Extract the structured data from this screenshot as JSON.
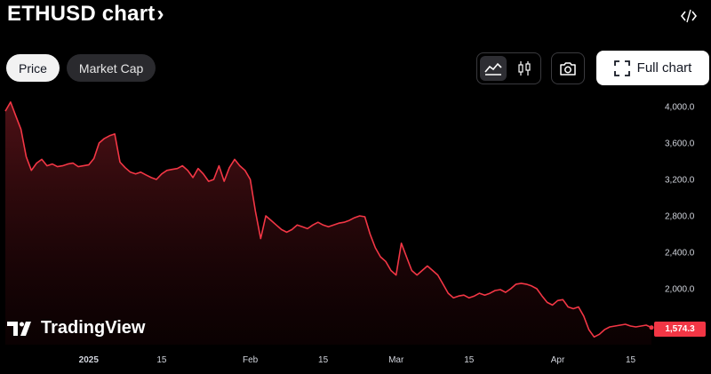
{
  "header": {
    "title": "ETHUSD chart",
    "title_chevron": "›",
    "embed_icon": "code-embed-icon"
  },
  "tabs": [
    {
      "label": "Price",
      "active": true
    },
    {
      "label": "Market Cap",
      "active": false
    }
  ],
  "toolbar": {
    "area_chart_icon": "area-chart-icon",
    "candles_icon": "candlestick-icon",
    "camera_icon": "camera-icon",
    "full_chart_label": "Full chart",
    "full_chart_icon": "fullscreen-icon"
  },
  "branding": {
    "logo_text": "TradingView"
  },
  "colors": {
    "line": "#f23645",
    "badge": "#f23645",
    "background": "#000000"
  },
  "chart_data": {
    "type": "area",
    "symbol": "ETHUSD",
    "y_ticks": [
      "4,000.0",
      "3,600.0",
      "3,200.0",
      "2,800.0",
      "2,400.0",
      "2,000.0"
    ],
    "y_tick_values": [
      4000,
      3600,
      3200,
      2800,
      2400,
      2000
    ],
    "x_ticks": [
      {
        "label": "2025",
        "date": "2025-01-01",
        "bold": true
      },
      {
        "label": "15",
        "date": "2025-01-15",
        "bold": false
      },
      {
        "label": "Feb",
        "date": "2025-02-01",
        "bold": false
      },
      {
        "label": "15",
        "date": "2025-02-15",
        "bold": false
      },
      {
        "label": "Mar",
        "date": "2025-03-01",
        "bold": false
      },
      {
        "label": "15",
        "date": "2025-03-15",
        "bold": false
      },
      {
        "label": "Apr",
        "date": "2025-04-01",
        "bold": false
      },
      {
        "label": "15",
        "date": "2025-04-15",
        "bold": false
      }
    ],
    "last_price": "1,574.3",
    "series": [
      {
        "x": [
          "2024-12-16",
          "2024-12-17",
          "2024-12-18",
          "2024-12-19",
          "2024-12-20",
          "2024-12-21",
          "2024-12-22",
          "2024-12-23",
          "2024-12-24",
          "2024-12-25",
          "2024-12-26",
          "2024-12-27",
          "2024-12-28",
          "2024-12-29",
          "2024-12-30",
          "2024-12-31",
          "2025-01-01",
          "2025-01-02",
          "2025-01-03",
          "2025-01-04",
          "2025-01-05",
          "2025-01-06",
          "2025-01-07",
          "2025-01-08",
          "2025-01-09",
          "2025-01-10",
          "2025-01-11",
          "2025-01-12",
          "2025-01-13",
          "2025-01-14",
          "2025-01-15",
          "2025-01-16",
          "2025-01-17",
          "2025-01-18",
          "2025-01-19",
          "2025-01-20",
          "2025-01-21",
          "2025-01-22",
          "2025-01-23",
          "2025-01-24",
          "2025-01-25",
          "2025-01-26",
          "2025-01-27",
          "2025-01-28",
          "2025-01-29",
          "2025-01-30",
          "2025-01-31",
          "2025-02-01",
          "2025-02-02",
          "2025-02-03",
          "2025-02-04",
          "2025-02-05",
          "2025-02-06",
          "2025-02-07",
          "2025-02-08",
          "2025-02-09",
          "2025-02-10",
          "2025-02-11",
          "2025-02-12",
          "2025-02-13",
          "2025-02-14",
          "2025-02-15",
          "2025-02-16",
          "2025-02-17",
          "2025-02-18",
          "2025-02-19",
          "2025-02-20",
          "2025-02-21",
          "2025-02-22",
          "2025-02-23",
          "2025-02-24",
          "2025-02-25",
          "2025-02-26",
          "2025-02-27",
          "2025-02-28",
          "2025-03-01",
          "2025-03-02",
          "2025-03-03",
          "2025-03-04",
          "2025-03-05",
          "2025-03-06",
          "2025-03-07",
          "2025-03-08",
          "2025-03-09",
          "2025-03-10",
          "2025-03-11",
          "2025-03-12",
          "2025-03-13",
          "2025-03-14",
          "2025-03-15",
          "2025-03-16",
          "2025-03-17",
          "2025-03-18",
          "2025-03-19",
          "2025-03-20",
          "2025-03-21",
          "2025-03-22",
          "2025-03-23",
          "2025-03-24",
          "2025-03-25",
          "2025-03-26",
          "2025-03-27",
          "2025-03-28",
          "2025-03-29",
          "2025-03-30",
          "2025-03-31",
          "2025-04-01",
          "2025-04-02",
          "2025-04-03",
          "2025-04-04",
          "2025-04-05",
          "2025-04-06",
          "2025-04-07",
          "2025-04-08",
          "2025-04-09",
          "2025-04-10",
          "2025-04-11",
          "2025-04-12",
          "2025-04-13",
          "2025-04-14",
          "2025-04-15",
          "2025-04-16",
          "2025-04-17",
          "2025-04-18",
          "2025-04-19"
        ],
        "values": [
          3950,
          4050,
          3900,
          3750,
          3450,
          3300,
          3380,
          3420,
          3350,
          3370,
          3340,
          3350,
          3370,
          3380,
          3340,
          3350,
          3360,
          3430,
          3600,
          3650,
          3680,
          3700,
          3390,
          3330,
          3280,
          3260,
          3280,
          3250,
          3220,
          3200,
          3260,
          3300,
          3310,
          3320,
          3350,
          3300,
          3220,
          3320,
          3260,
          3180,
          3200,
          3350,
          3180,
          3330,
          3420,
          3350,
          3300,
          3200,
          2850,
          2550,
          2800,
          2750,
          2700,
          2650,
          2620,
          2650,
          2700,
          2680,
          2660,
          2700,
          2730,
          2700,
          2680,
          2700,
          2720,
          2730,
          2750,
          2780,
          2800,
          2790,
          2600,
          2450,
          2350,
          2300,
          2200,
          2150,
          2500,
          2350,
          2200,
          2150,
          2200,
          2250,
          2200,
          2150,
          2050,
          1950,
          1900,
          1920,
          1930,
          1900,
          1920,
          1950,
          1930,
          1950,
          1980,
          1990,
          1960,
          2000,
          2050,
          2060,
          2050,
          2030,
          2000,
          1920,
          1850,
          1820,
          1870,
          1880,
          1800,
          1780,
          1800,
          1700,
          1550,
          1470,
          1500,
          1550,
          1580,
          1590,
          1600,
          1610,
          1590,
          1580,
          1590,
          1600,
          1574
        ]
      }
    ]
  }
}
